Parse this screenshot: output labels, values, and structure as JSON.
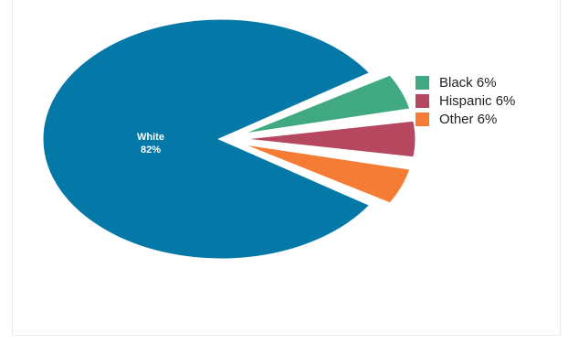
{
  "chart_data": {
    "type": "pie",
    "slices": [
      {
        "label": "White",
        "value": 82,
        "display": "82%",
        "color": "#0479a8"
      },
      {
        "label": "Black",
        "value": 6,
        "display": "6%",
        "color": "#40a982"
      },
      {
        "label": "Hispanic",
        "value": 6,
        "display": "6%",
        "color": "#b5485e"
      },
      {
        "label": "Other",
        "value": 6,
        "display": "6%",
        "color": "#f57c34"
      }
    ],
    "legend": {
      "placement": "right",
      "items": [
        {
          "text": "Black 6%",
          "color": "#40a982"
        },
        {
          "text": "Hispanic 6%",
          "color": "#b5485e"
        },
        {
          "text": "Other 6%",
          "color": "#f57c34"
        }
      ]
    },
    "inside_label": {
      "name": "White",
      "value": "82%"
    }
  }
}
